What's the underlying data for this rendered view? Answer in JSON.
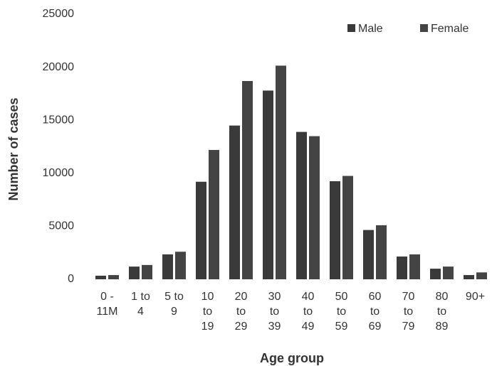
{
  "chart_data": {
    "type": "bar",
    "x_label": "Age group",
    "y_label": "Number of cases",
    "categories": [
      "0 - 11M",
      "1 to 4",
      "5 to 9",
      "10 to 19",
      "20 to 29",
      "30 to 39",
      "40 to 49",
      "50 to 59",
      "60 to 69",
      "70 to 79",
      "80 to 89",
      "90+"
    ],
    "series": [
      {
        "name": "Male",
        "color": "#3a3a3a",
        "values": [
          340,
          1200,
          2350,
          9200,
          14500,
          17800,
          13900,
          9250,
          4650,
          2150,
          1000,
          400
        ]
      },
      {
        "name": "Female",
        "color": "#444444",
        "values": [
          400,
          1350,
          2600,
          12200,
          18700,
          20150,
          13500,
          9750,
          5100,
          2350,
          1200,
          650
        ]
      }
    ],
    "ylim": [
      0,
      25000
    ],
    "yticks": [
      0,
      5000,
      10000,
      15000,
      20000,
      25000
    ],
    "grid": false,
    "legend": "top-right"
  }
}
